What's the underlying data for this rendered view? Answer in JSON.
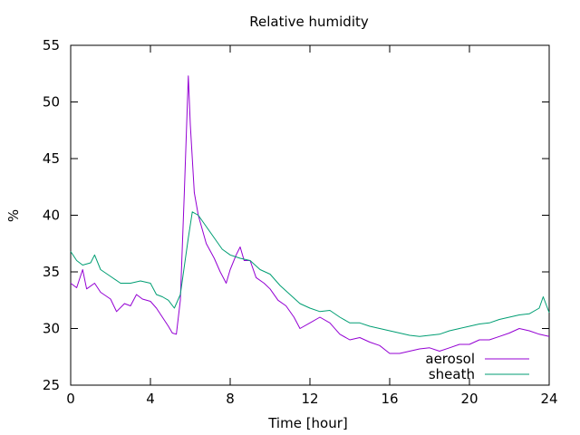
{
  "chart_data": {
    "type": "line",
    "title": "Relative humidity",
    "xlabel": "Time [hour]",
    "ylabel": "%",
    "xlim": [
      0,
      24
    ],
    "ylim": [
      25,
      55
    ],
    "xticks": [
      0,
      4,
      8,
      12,
      16,
      20,
      24
    ],
    "yticks": [
      25,
      30,
      35,
      40,
      45,
      50,
      55
    ],
    "grid": false,
    "legend_position": "bottom-right",
    "series": [
      {
        "name": "aerosol",
        "color": "#9400d3",
        "points": [
          [
            0.0,
            34.0
          ],
          [
            0.3,
            33.6
          ],
          [
            0.6,
            35.2
          ],
          [
            0.8,
            33.5
          ],
          [
            1.2,
            34.0
          ],
          [
            1.5,
            33.2
          ],
          [
            2.0,
            32.6
          ],
          [
            2.3,
            31.5
          ],
          [
            2.7,
            32.2
          ],
          [
            3.0,
            32.0
          ],
          [
            3.3,
            33.0
          ],
          [
            3.6,
            32.6
          ],
          [
            4.0,
            32.4
          ],
          [
            4.3,
            31.8
          ],
          [
            4.6,
            31.0
          ],
          [
            4.9,
            30.2
          ],
          [
            5.1,
            29.6
          ],
          [
            5.3,
            29.5
          ],
          [
            5.5,
            32.5
          ],
          [
            5.7,
            42.0
          ],
          [
            5.9,
            52.3
          ],
          [
            6.0,
            48.0
          ],
          [
            6.2,
            42.0
          ],
          [
            6.4,
            40.0
          ],
          [
            6.8,
            37.5
          ],
          [
            7.2,
            36.2
          ],
          [
            7.5,
            35.0
          ],
          [
            7.8,
            34.0
          ],
          [
            8.0,
            35.2
          ],
          [
            8.3,
            36.5
          ],
          [
            8.5,
            37.2
          ],
          [
            8.7,
            36.0
          ],
          [
            9.0,
            36.0
          ],
          [
            9.3,
            34.5
          ],
          [
            9.7,
            34.0
          ],
          [
            10.0,
            33.5
          ],
          [
            10.4,
            32.5
          ],
          [
            10.8,
            32.0
          ],
          [
            11.2,
            31.0
          ],
          [
            11.5,
            30.0
          ],
          [
            12.0,
            30.5
          ],
          [
            12.5,
            31.0
          ],
          [
            13.0,
            30.5
          ],
          [
            13.5,
            29.5
          ],
          [
            14.0,
            29.0
          ],
          [
            14.5,
            29.2
          ],
          [
            15.0,
            28.8
          ],
          [
            15.5,
            28.5
          ],
          [
            16.0,
            27.8
          ],
          [
            16.5,
            27.8
          ],
          [
            17.0,
            28.0
          ],
          [
            17.5,
            28.2
          ],
          [
            18.0,
            28.3
          ],
          [
            18.5,
            28.0
          ],
          [
            19.0,
            28.3
          ],
          [
            19.5,
            28.6
          ],
          [
            20.0,
            28.6
          ],
          [
            20.5,
            29.0
          ],
          [
            21.0,
            29.0
          ],
          [
            21.5,
            29.3
          ],
          [
            22.0,
            29.6
          ],
          [
            22.5,
            30.0
          ],
          [
            23.0,
            29.8
          ],
          [
            23.5,
            29.5
          ],
          [
            24.0,
            29.3
          ]
        ]
      },
      {
        "name": "sheath",
        "color": "#009e73",
        "points": [
          [
            0.0,
            36.8
          ],
          [
            0.3,
            36.0
          ],
          [
            0.6,
            35.6
          ],
          [
            1.0,
            35.8
          ],
          [
            1.2,
            36.5
          ],
          [
            1.5,
            35.2
          ],
          [
            2.0,
            34.6
          ],
          [
            2.5,
            34.0
          ],
          [
            3.0,
            34.0
          ],
          [
            3.5,
            34.2
          ],
          [
            4.0,
            34.0
          ],
          [
            4.3,
            33.0
          ],
          [
            4.6,
            32.8
          ],
          [
            4.9,
            32.5
          ],
          [
            5.2,
            31.8
          ],
          [
            5.5,
            33.0
          ],
          [
            5.7,
            35.5
          ],
          [
            5.9,
            38.0
          ],
          [
            6.1,
            40.3
          ],
          [
            6.4,
            40.0
          ],
          [
            6.8,
            39.0
          ],
          [
            7.2,
            38.0
          ],
          [
            7.6,
            37.0
          ],
          [
            8.0,
            36.5
          ],
          [
            8.5,
            36.2
          ],
          [
            9.0,
            36.0
          ],
          [
            9.5,
            35.2
          ],
          [
            10.0,
            34.8
          ],
          [
            10.5,
            33.8
          ],
          [
            11.0,
            33.0
          ],
          [
            11.5,
            32.2
          ],
          [
            12.0,
            31.8
          ],
          [
            12.5,
            31.5
          ],
          [
            13.0,
            31.6
          ],
          [
            13.5,
            31.0
          ],
          [
            14.0,
            30.5
          ],
          [
            14.5,
            30.5
          ],
          [
            15.0,
            30.2
          ],
          [
            15.5,
            30.0
          ],
          [
            16.0,
            29.8
          ],
          [
            16.5,
            29.6
          ],
          [
            17.0,
            29.4
          ],
          [
            17.5,
            29.3
          ],
          [
            18.0,
            29.4
          ],
          [
            18.5,
            29.5
          ],
          [
            19.0,
            29.8
          ],
          [
            19.5,
            30.0
          ],
          [
            20.0,
            30.2
          ],
          [
            20.5,
            30.4
          ],
          [
            21.0,
            30.5
          ],
          [
            21.5,
            30.8
          ],
          [
            22.0,
            31.0
          ],
          [
            22.5,
            31.2
          ],
          [
            23.0,
            31.3
          ],
          [
            23.5,
            31.8
          ],
          [
            23.7,
            32.8
          ],
          [
            24.0,
            31.4
          ]
        ]
      }
    ]
  }
}
